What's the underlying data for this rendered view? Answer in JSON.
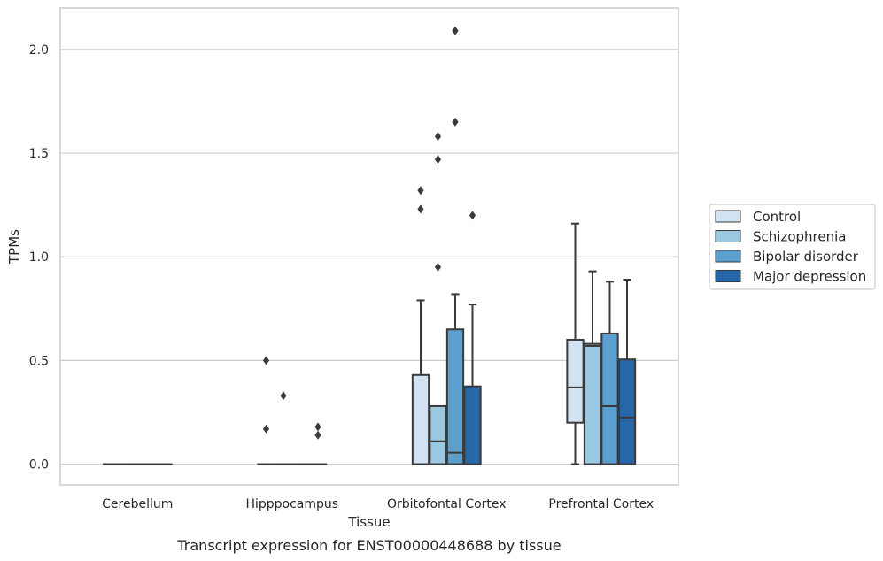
{
  "caption": "Transcript expression for ENST00000448688 by tissue",
  "chart_data": {
    "type": "box",
    "xlabel": "Tissue",
    "ylabel": "TPMs",
    "ylim": [
      -0.1,
      2.2
    ],
    "yticks": [
      0.0,
      0.5,
      1.0,
      1.5,
      2.0
    ],
    "ytick_labels": [
      "0.0",
      "0.5",
      "1.0",
      "1.5",
      "2.0"
    ],
    "grid": "horizontal",
    "legend_position": "right",
    "categories": [
      "Cerebellum",
      "Hipppocampus",
      "Orbitofontal Cortex",
      "Prefrontal Cortex"
    ],
    "series": [
      {
        "name": "Control",
        "color": "#d1e2f2",
        "boxes": [
          {
            "q1": 0,
            "median": 0,
            "q3": 0,
            "whisker_low": 0,
            "whisker_high": 0,
            "outliers": []
          },
          {
            "q1": 0,
            "median": 0,
            "q3": 0,
            "whisker_low": 0,
            "whisker_high": 0,
            "outliers": [
              0.5,
              0.17
            ]
          },
          {
            "q1": 0,
            "median": 0,
            "q3": 0.43,
            "whisker_low": 0,
            "whisker_high": 0.79,
            "outliers": [
              1.32,
              1.23
            ]
          },
          {
            "q1": 0.2,
            "median": 0.37,
            "q3": 0.6,
            "whisker_low": 0,
            "whisker_high": 1.16,
            "outliers": []
          }
        ]
      },
      {
        "name": "Schizophrenia",
        "color": "#9ac8e0",
        "boxes": [
          {
            "q1": 0,
            "median": 0,
            "q3": 0,
            "whisker_low": 0,
            "whisker_high": 0,
            "outliers": []
          },
          {
            "q1": 0,
            "median": 0,
            "q3": 0,
            "whisker_low": 0,
            "whisker_high": 0,
            "outliers": [
              0.33
            ]
          },
          {
            "q1": 0,
            "median": 0.11,
            "q3": 0.28,
            "whisker_low": 0,
            "whisker_high": 0.28,
            "outliers": [
              1.58,
              1.47,
              0.95
            ]
          },
          {
            "q1": 0,
            "median": 0.57,
            "q3": 0.58,
            "whisker_low": 0,
            "whisker_high": 0.93,
            "outliers": []
          }
        ]
      },
      {
        "name": "Bipolar disorder",
        "color": "#5a9fcd",
        "boxes": [
          {
            "q1": 0,
            "median": 0,
            "q3": 0,
            "whisker_low": 0,
            "whisker_high": 0,
            "outliers": []
          },
          {
            "q1": 0,
            "median": 0,
            "q3": 0,
            "whisker_low": 0,
            "whisker_high": 0,
            "outliers": []
          },
          {
            "q1": 0,
            "median": 0.055,
            "q3": 0.65,
            "whisker_low": 0,
            "whisker_high": 0.82,
            "outliers": [
              2.09,
              1.65
            ]
          },
          {
            "q1": 0,
            "median": 0.28,
            "q3": 0.63,
            "whisker_low": 0,
            "whisker_high": 0.88,
            "outliers": []
          }
        ]
      },
      {
        "name": "Major depression",
        "color": "#2666aa",
        "boxes": [
          {
            "q1": 0,
            "median": 0,
            "q3": 0,
            "whisker_low": 0,
            "whisker_high": 0,
            "outliers": []
          },
          {
            "q1": 0,
            "median": 0,
            "q3": 0,
            "whisker_low": 0,
            "whisker_high": 0,
            "outliers": [
              0.18,
              0.14
            ]
          },
          {
            "q1": 0,
            "median": 0,
            "q3": 0.375,
            "whisker_low": 0,
            "whisker_high": 0.77,
            "outliers": [
              1.2
            ]
          },
          {
            "q1": 0,
            "median": 0.225,
            "q3": 0.505,
            "whisker_low": 0,
            "whisker_high": 0.89,
            "outliers": []
          }
        ]
      }
    ]
  }
}
